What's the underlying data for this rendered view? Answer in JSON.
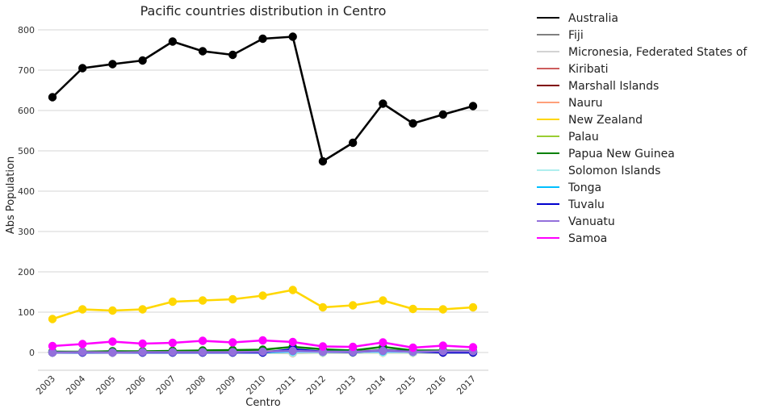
{
  "chart_data": {
    "type": "line",
    "title": "Pacific countries distribution in Centro",
    "xlabel": "Centro",
    "ylabel": "Abs Population",
    "categories": [
      "2003",
      "2004",
      "2005",
      "2006",
      "2007",
      "2008",
      "2009",
      "2010",
      "2011",
      "2012",
      "2013",
      "2014",
      "2015",
      "2016",
      "2017"
    ],
    "ylim": [
      -45,
      825
    ],
    "yticks": [
      0,
      100,
      200,
      300,
      400,
      500,
      600,
      700,
      800
    ],
    "grid": "horizontal",
    "legend_position": "outside-right",
    "series": [
      {
        "name": "Australia",
        "color": "#000000",
        "values": [
          633,
          705,
          715,
          724,
          771,
          747,
          738,
          778,
          783,
          474,
          520,
          617,
          568,
          590,
          611
        ]
      },
      {
        "name": "Fiji",
        "color": "#808080",
        "values": [
          2,
          1,
          3,
          2,
          3,
          4,
          5,
          3,
          4,
          3,
          2,
          6,
          3,
          4,
          3
        ]
      },
      {
        "name": "Micronesia, Federated States of",
        "color": "#d3d3d3",
        "values": [
          0,
          0,
          0,
          0,
          0,
          0,
          0,
          0,
          -2,
          0,
          0,
          0,
          0,
          0,
          0
        ]
      },
      {
        "name": "Kiribati",
        "color": "#cd5c5c",
        "values": [
          0,
          0,
          0,
          0,
          0,
          0,
          0,
          0,
          0,
          0,
          0,
          0,
          0,
          0,
          0
        ]
      },
      {
        "name": "Marshall Islands",
        "color": "#800000",
        "values": [
          0,
          0,
          0,
          0,
          0,
          0,
          0,
          0,
          0,
          0,
          0,
          0,
          0,
          0,
          0
        ]
      },
      {
        "name": "Nauru",
        "color": "#ffa07a",
        "values": [
          0,
          0,
          0,
          0,
          0,
          0,
          0,
          0,
          0,
          0,
          0,
          0,
          0,
          0,
          0
        ]
      },
      {
        "name": "New Zealand",
        "color": "#ffd700",
        "values": [
          83,
          107,
          104,
          107,
          126,
          129,
          132,
          141,
          155,
          112,
          117,
          129,
          108,
          107,
          112
        ]
      },
      {
        "name": "Palau",
        "color": "#9acd32",
        "values": [
          0,
          0,
          0,
          0,
          0,
          0,
          0,
          0,
          0,
          0,
          0,
          0,
          0,
          0,
          0
        ]
      },
      {
        "name": "Papua New Guinea",
        "color": "#008000",
        "values": [
          2,
          2,
          3,
          3,
          4,
          5,
          6,
          7,
          14,
          8,
          5,
          14,
          5,
          5,
          4
        ]
      },
      {
        "name": "Solomon Islands",
        "color": "#afeeee",
        "values": [
          0,
          0,
          0,
          0,
          0,
          0,
          0,
          0,
          0,
          0,
          0,
          0,
          0,
          0,
          0
        ]
      },
      {
        "name": "Tonga",
        "color": "#00bfff",
        "values": [
          0,
          0,
          0,
          0,
          0,
          0,
          0,
          0,
          3,
          2,
          2,
          3,
          2,
          2,
          2
        ]
      },
      {
        "name": "Tuvalu",
        "color": "#0000cd",
        "values": [
          0,
          0,
          0,
          0,
          0,
          0,
          0,
          0,
          8,
          2,
          1,
          5,
          2,
          0,
          0
        ]
      },
      {
        "name": "Vanuatu",
        "color": "#9370db",
        "values": [
          0,
          1,
          0,
          1,
          1,
          1,
          1,
          2,
          4,
          2,
          2,
          4,
          2,
          3,
          3
        ]
      },
      {
        "name": "Samoa",
        "color": "#ff00ff",
        "values": [
          16,
          21,
          27,
          22,
          24,
          29,
          25,
          30,
          26,
          15,
          14,
          25,
          12,
          17,
          13
        ]
      }
    ]
  }
}
